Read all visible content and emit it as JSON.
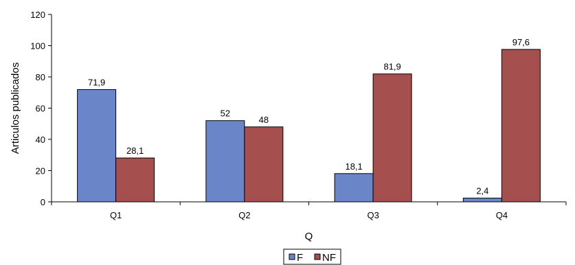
{
  "chart_data": {
    "type": "bar",
    "categories": [
      "Q1",
      "Q2",
      "Q3",
      "Q4"
    ],
    "series": [
      {
        "name": "F",
        "values": [
          71.9,
          52,
          18.1,
          2.4
        ],
        "labels": [
          "71,9",
          "52",
          "18,1",
          "2,4"
        ],
        "color": "#6b86c8"
      },
      {
        "name": "NF",
        "values": [
          28.1,
          48,
          81.9,
          97.6
        ],
        "labels": [
          "28,1",
          "48",
          "81,9",
          "97,6"
        ],
        "color": "#a5504f"
      }
    ],
    "xlabel": "Q",
    "ylabel": "Articulos publicados",
    "ylim": [
      0,
      120
    ],
    "yticks": [
      0,
      20,
      40,
      60,
      80,
      100,
      120
    ],
    "grid": false,
    "legend": "bottom-center"
  }
}
